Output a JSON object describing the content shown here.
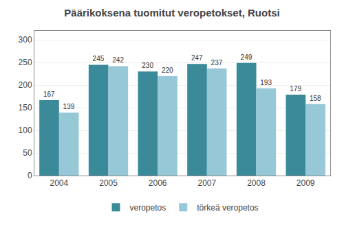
{
  "chart_data": {
    "type": "bar",
    "title": "Päärikoksena tuomitut veropetokset, Ruotsi",
    "categories": [
      "2004",
      "2005",
      "2006",
      "2007",
      "2008",
      "2009"
    ],
    "series": [
      {
        "name": "veropetos",
        "color": "#3A8A9A",
        "values": [
          167,
          245,
          230,
          247,
          249,
          179
        ]
      },
      {
        "name": "törkeä veropetos",
        "color": "#96C8D8",
        "values": [
          139,
          242,
          220,
          237,
          193,
          158
        ]
      }
    ],
    "ylim": [
      0,
      320
    ],
    "yticks": [
      0,
      50,
      100,
      150,
      200,
      250,
      300
    ],
    "grid": true,
    "legend": "bottom",
    "data_labels": true
  }
}
